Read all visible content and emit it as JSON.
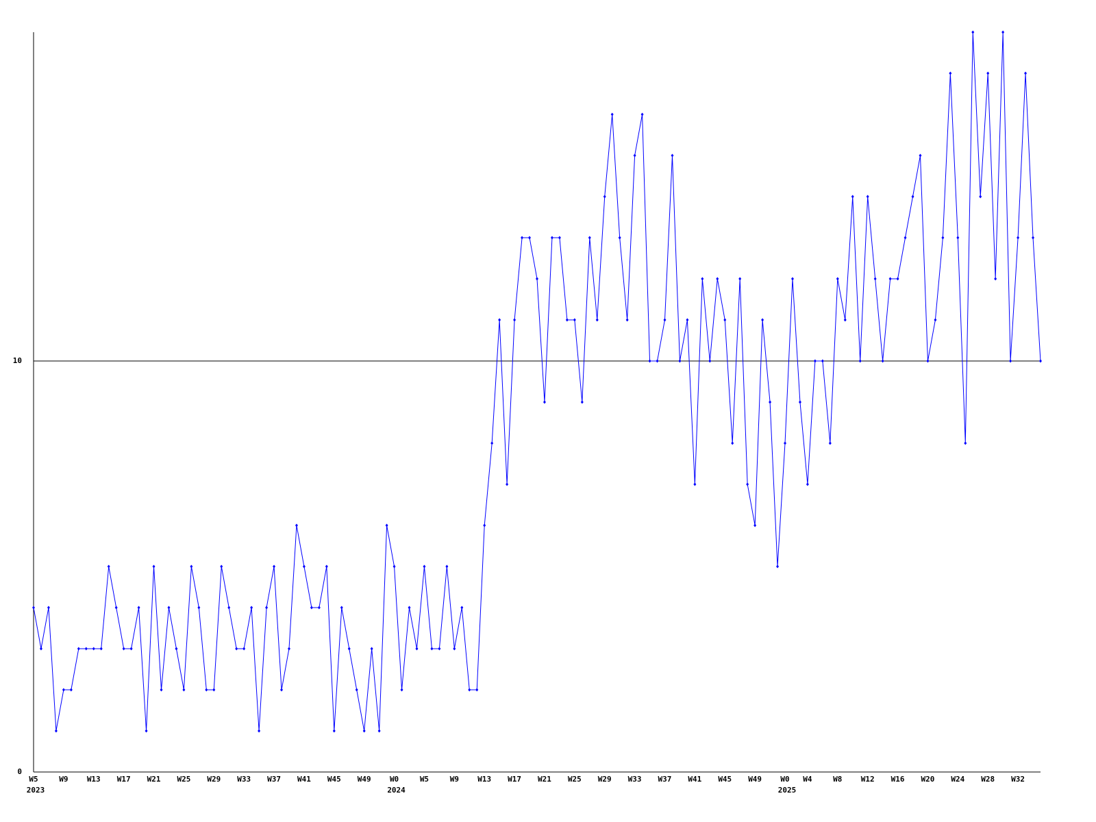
{
  "chart_data": {
    "type": "line",
    "color": "#0000ff",
    "categories": [
      "W5",
      null,
      null,
      null,
      "W9",
      null,
      null,
      null,
      "W13",
      null,
      null,
      null,
      "W17",
      null,
      null,
      null,
      "W21",
      null,
      null,
      null,
      "W25",
      null,
      null,
      null,
      "W29",
      null,
      null,
      null,
      "W33",
      null,
      null,
      null,
      "W37",
      null,
      null,
      null,
      "W41",
      null,
      null,
      null,
      "W45",
      null,
      null,
      null,
      "W49",
      null,
      null,
      null,
      "W0",
      null,
      null,
      null,
      "W5",
      null,
      null,
      null,
      "W9",
      null,
      null,
      null,
      "W13",
      null,
      null,
      null,
      "W17",
      null,
      null,
      null,
      "W21",
      null,
      null,
      null,
      "W25",
      null,
      null,
      null,
      "W29",
      null,
      null,
      null,
      "W33",
      null,
      null,
      null,
      "W37",
      null,
      null,
      null,
      "W41",
      null,
      null,
      null,
      "W45",
      null,
      null,
      null,
      "W49",
      null,
      null,
      null,
      "W0",
      null,
      null,
      "W4",
      null,
      null,
      null,
      "W8",
      null,
      null,
      null,
      "W12",
      null,
      null,
      null,
      "W16",
      null,
      null,
      null,
      "W20",
      null,
      null,
      null,
      "W24",
      null,
      null,
      null,
      "W28",
      null,
      null,
      null,
      "W32",
      null,
      null,
      null
    ],
    "category_years": [
      "2023",
      null,
      null,
      null,
      null,
      null,
      null,
      null,
      null,
      null,
      null,
      null,
      null,
      null,
      null,
      null,
      null,
      null,
      null,
      null,
      null,
      null,
      null,
      null,
      null,
      null,
      null,
      null,
      null,
      null,
      null,
      null,
      null,
      null,
      null,
      null,
      null,
      null,
      null,
      null,
      null,
      null,
      null,
      null,
      null,
      null,
      null,
      null,
      "2024",
      null,
      null,
      null,
      null,
      null,
      null,
      null,
      null,
      null,
      null,
      null,
      null,
      null,
      null,
      null,
      null,
      null,
      null,
      null,
      null,
      null,
      null,
      null,
      null,
      null,
      null,
      null,
      null,
      null,
      null,
      null,
      null,
      null,
      null,
      null,
      null,
      null,
      null,
      null,
      null,
      null,
      null,
      null,
      null,
      null,
      null,
      null,
      null,
      null,
      null,
      null,
      "2025",
      null,
      null,
      null,
      null,
      null,
      null,
      null,
      null,
      null,
      null,
      null,
      null,
      null,
      null,
      null,
      null,
      null,
      null,
      null,
      null,
      null,
      null,
      null,
      null,
      null,
      null,
      null,
      null,
      null,
      null,
      null,
      null,
      null,
      null
    ],
    "values": [
      4,
      3,
      4,
      1,
      2,
      2,
      3,
      3,
      3,
      3,
      5,
      4,
      3,
      3,
      4,
      1,
      5,
      2,
      4,
      3,
      2,
      5,
      4,
      2,
      2,
      5,
      4,
      3,
      3,
      4,
      1,
      4,
      5,
      2,
      3,
      6,
      5,
      4,
      4,
      5,
      1,
      4,
      3,
      2,
      1,
      3,
      1,
      6,
      5,
      2,
      4,
      3,
      5,
      3,
      3,
      5,
      3,
      4,
      2,
      2,
      6,
      8,
      11,
      7,
      11,
      13,
      13,
      12,
      9,
      13,
      13,
      11,
      11,
      9,
      13,
      11,
      14,
      16,
      13,
      11,
      15,
      16,
      10,
      10,
      11,
      15,
      10,
      11,
      7,
      12,
      10,
      12,
      11,
      8,
      12,
      7,
      6,
      11,
      9,
      5,
      8,
      12,
      9,
      7,
      10,
      10,
      8,
      12,
      11,
      14,
      10,
      14,
      12,
      10,
      12,
      12,
      13,
      14,
      15,
      10,
      11,
      13,
      17,
      13,
      8,
      18,
      14,
      17,
      12,
      18,
      10,
      13,
      17,
      13,
      10
    ],
    "ylim": [
      0,
      18
    ],
    "yticks": [
      0,
      10
    ],
    "grid": true
  }
}
